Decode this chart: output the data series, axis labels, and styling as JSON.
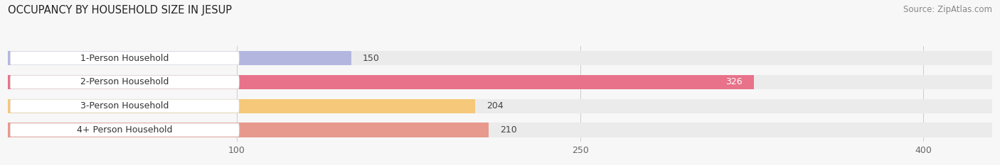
{
  "title": "OCCUPANCY BY HOUSEHOLD SIZE IN JESUP",
  "source": "Source: ZipAtlas.com",
  "categories": [
    "1-Person Household",
    "2-Person Household",
    "3-Person Household",
    "4+ Person Household"
  ],
  "values": [
    150,
    326,
    204,
    210
  ],
  "bar_colors": [
    "#b3b7e0",
    "#e8728a",
    "#f5c87a",
    "#e8998d"
  ],
  "bar_bg_color": "#ebebeb",
  "label_colors": [
    "#444444",
    "#ffffff",
    "#444444",
    "#444444"
  ],
  "xlim": [
    0,
    430
  ],
  "xticks": [
    100,
    250,
    400
  ],
  "figsize": [
    14.06,
    2.33
  ],
  "dpi": 100,
  "bar_height": 0.6,
  "title_fontsize": 10.5,
  "source_fontsize": 8.5,
  "tick_fontsize": 9,
  "label_fontsize": 9,
  "cat_fontsize": 9
}
